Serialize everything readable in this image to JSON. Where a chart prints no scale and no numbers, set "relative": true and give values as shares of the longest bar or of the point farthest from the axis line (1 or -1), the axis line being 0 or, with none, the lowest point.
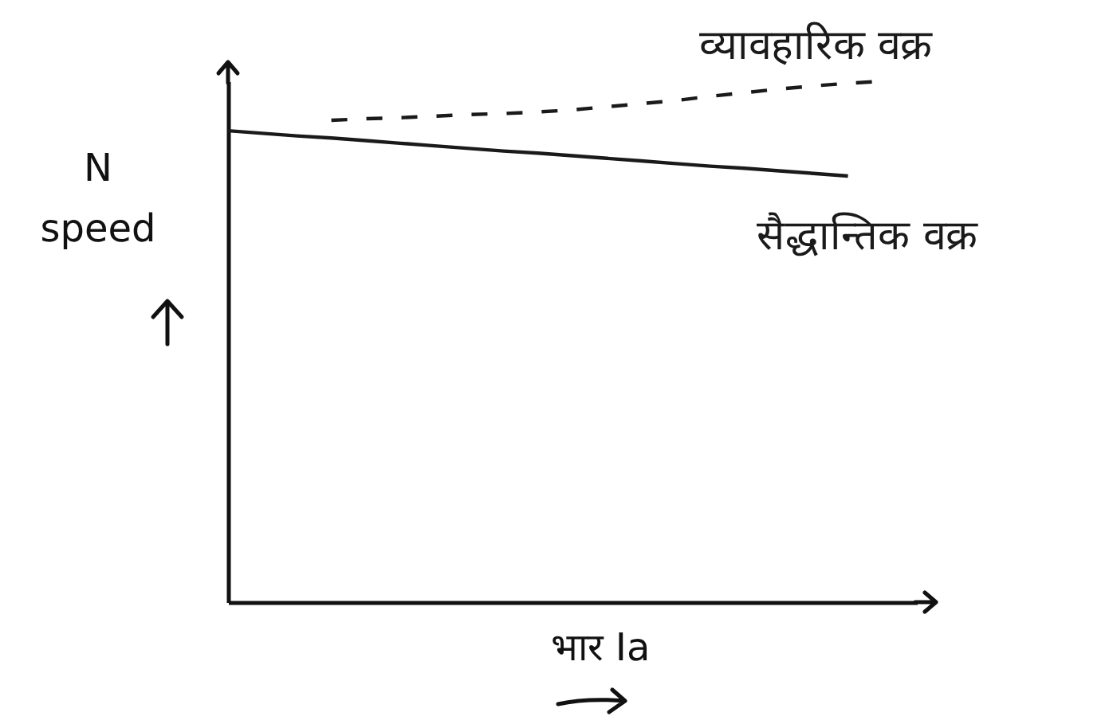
{
  "chart_data": {
    "type": "line",
    "relative": true,
    "xlabel": "भार Ia",
    "ylabel": "N speed",
    "categories": [
      null,
      null,
      null,
      null,
      null,
      null,
      null,
      null,
      null,
      null,
      null,
      null,
      null,
      null,
      null,
      null,
      null,
      null,
      null,
      null,
      null
    ],
    "series": [
      {
        "name": "व्यावहारिक वक्र",
        "color": "#1a1a1a",
        "line_style": "dashed",
        "values": [
          null,
          null,
          null,
          0.925,
          0.928,
          0.93,
          0.933,
          0.936,
          0.938,
          0.941,
          0.945,
          0.951,
          0.957,
          0.963,
          0.971,
          0.978,
          0.985,
          0.991,
          0.996,
          1.0,
          null
        ]
      },
      {
        "name": "सैद्धान्तिक वक्र",
        "color": "#1a1a1a",
        "line_style": "solid",
        "values": [
          0.905,
          0.9,
          0.895,
          0.891,
          0.886,
          0.881,
          0.876,
          0.871,
          0.866,
          0.862,
          0.857,
          0.852,
          0.847,
          0.842,
          0.837,
          0.833,
          0.828,
          0.823,
          0.818,
          null,
          null
        ]
      }
    ]
  }
}
